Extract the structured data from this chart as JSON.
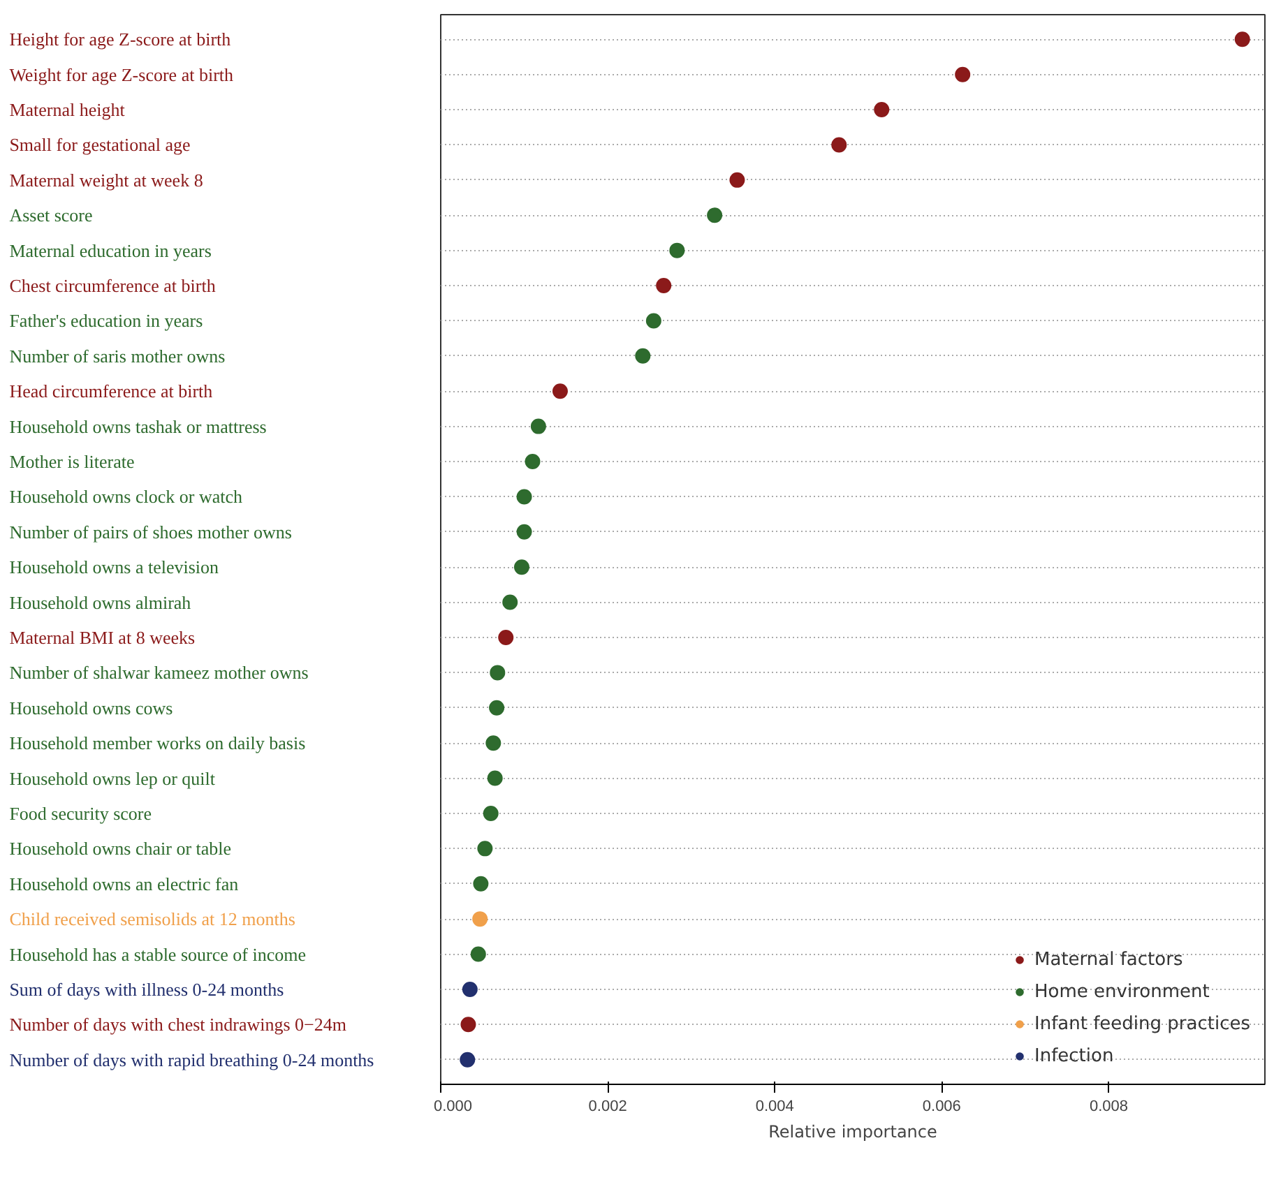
{
  "chart_data": {
    "type": "scatter",
    "orientation": "horizontal",
    "xlabel": "Relative importance",
    "categories": [
      "Height for age Z-score at birth",
      "Weight for age Z-score at birth",
      "Maternal height",
      "Small for gestational age",
      "Maternal weight at week 8",
      "Asset score",
      "Maternal education in years",
      "Chest circumference at birth",
      "Father's education in years",
      "Number of saris mother owns",
      "Head circumference at birth",
      "Household owns tashak or mattress",
      "Mother is literate",
      "Household owns clock or watch",
      "Number of pairs of shoes mother owns",
      "Household owns a television",
      "Household owns almirah",
      "Maternal BMI at 8 weeks",
      "Number of shalwar kameez mother owns",
      "Household owns cows",
      "Household member works on daily basis",
      "Household owns lep or quilt",
      "Food security score",
      "Household owns chair or table",
      "Household owns an electric fan",
      "Child received semisolids at 12 months",
      "Household has a stable source of income",
      "Sum of days with illness 0-24 months",
      "Number of days with chest indrawings 0−24m",
      "Number of days with rapid breathing 0-24 months"
    ],
    "series": [
      {
        "name": "Maternal factors",
        "color": "#8b1a1a",
        "values": [
          0.0096,
          0.00625,
          0.00528,
          0.00477,
          0.00355,
          null,
          null,
          0.00267,
          null,
          null,
          0.00143,
          null,
          null,
          null,
          null,
          null,
          null,
          0.00078,
          null,
          null,
          null,
          null,
          null,
          null,
          null,
          null,
          null,
          null,
          0.00033,
          null
        ]
      },
      {
        "name": "Home environment",
        "color": "#2e6b2e",
        "values": [
          null,
          null,
          null,
          null,
          null,
          0.00328,
          0.00283,
          null,
          0.00255,
          0.00242,
          null,
          0.00117,
          0.0011,
          0.001,
          0.001,
          0.00097,
          0.00083,
          null,
          0.00068,
          0.00067,
          0.00063,
          0.00065,
          0.0006,
          0.00053,
          0.00048,
          null,
          0.00045,
          null,
          null,
          null
        ]
      },
      {
        "name": "Infant feeding practices",
        "color": "#f0a04b",
        "values": [
          null,
          null,
          null,
          null,
          null,
          null,
          null,
          null,
          null,
          null,
          null,
          null,
          null,
          null,
          null,
          null,
          null,
          null,
          null,
          null,
          null,
          null,
          null,
          null,
          null,
          0.00047,
          null,
          null,
          null,
          null
        ]
      },
      {
        "name": "Infection",
        "color": "#22306e",
        "values": [
          null,
          null,
          null,
          null,
          null,
          null,
          null,
          null,
          null,
          null,
          null,
          null,
          null,
          null,
          null,
          null,
          null,
          null,
          null,
          null,
          null,
          null,
          null,
          null,
          null,
          null,
          null,
          0.00035,
          null,
          0.00032
        ]
      }
    ],
    "xlim": [
      0,
      0.00987
    ],
    "xticks": [
      {
        "value": 0,
        "label": "0.000"
      },
      {
        "value": 0.002,
        "label": "0.002"
      },
      {
        "value": 0.004,
        "label": "0.004"
      },
      {
        "value": 0.006,
        "label": "0.006"
      },
      {
        "value": 0.008,
        "label": "0.008"
      }
    ],
    "grid": "y",
    "legend": "bottom right",
    "marker": "circle"
  }
}
